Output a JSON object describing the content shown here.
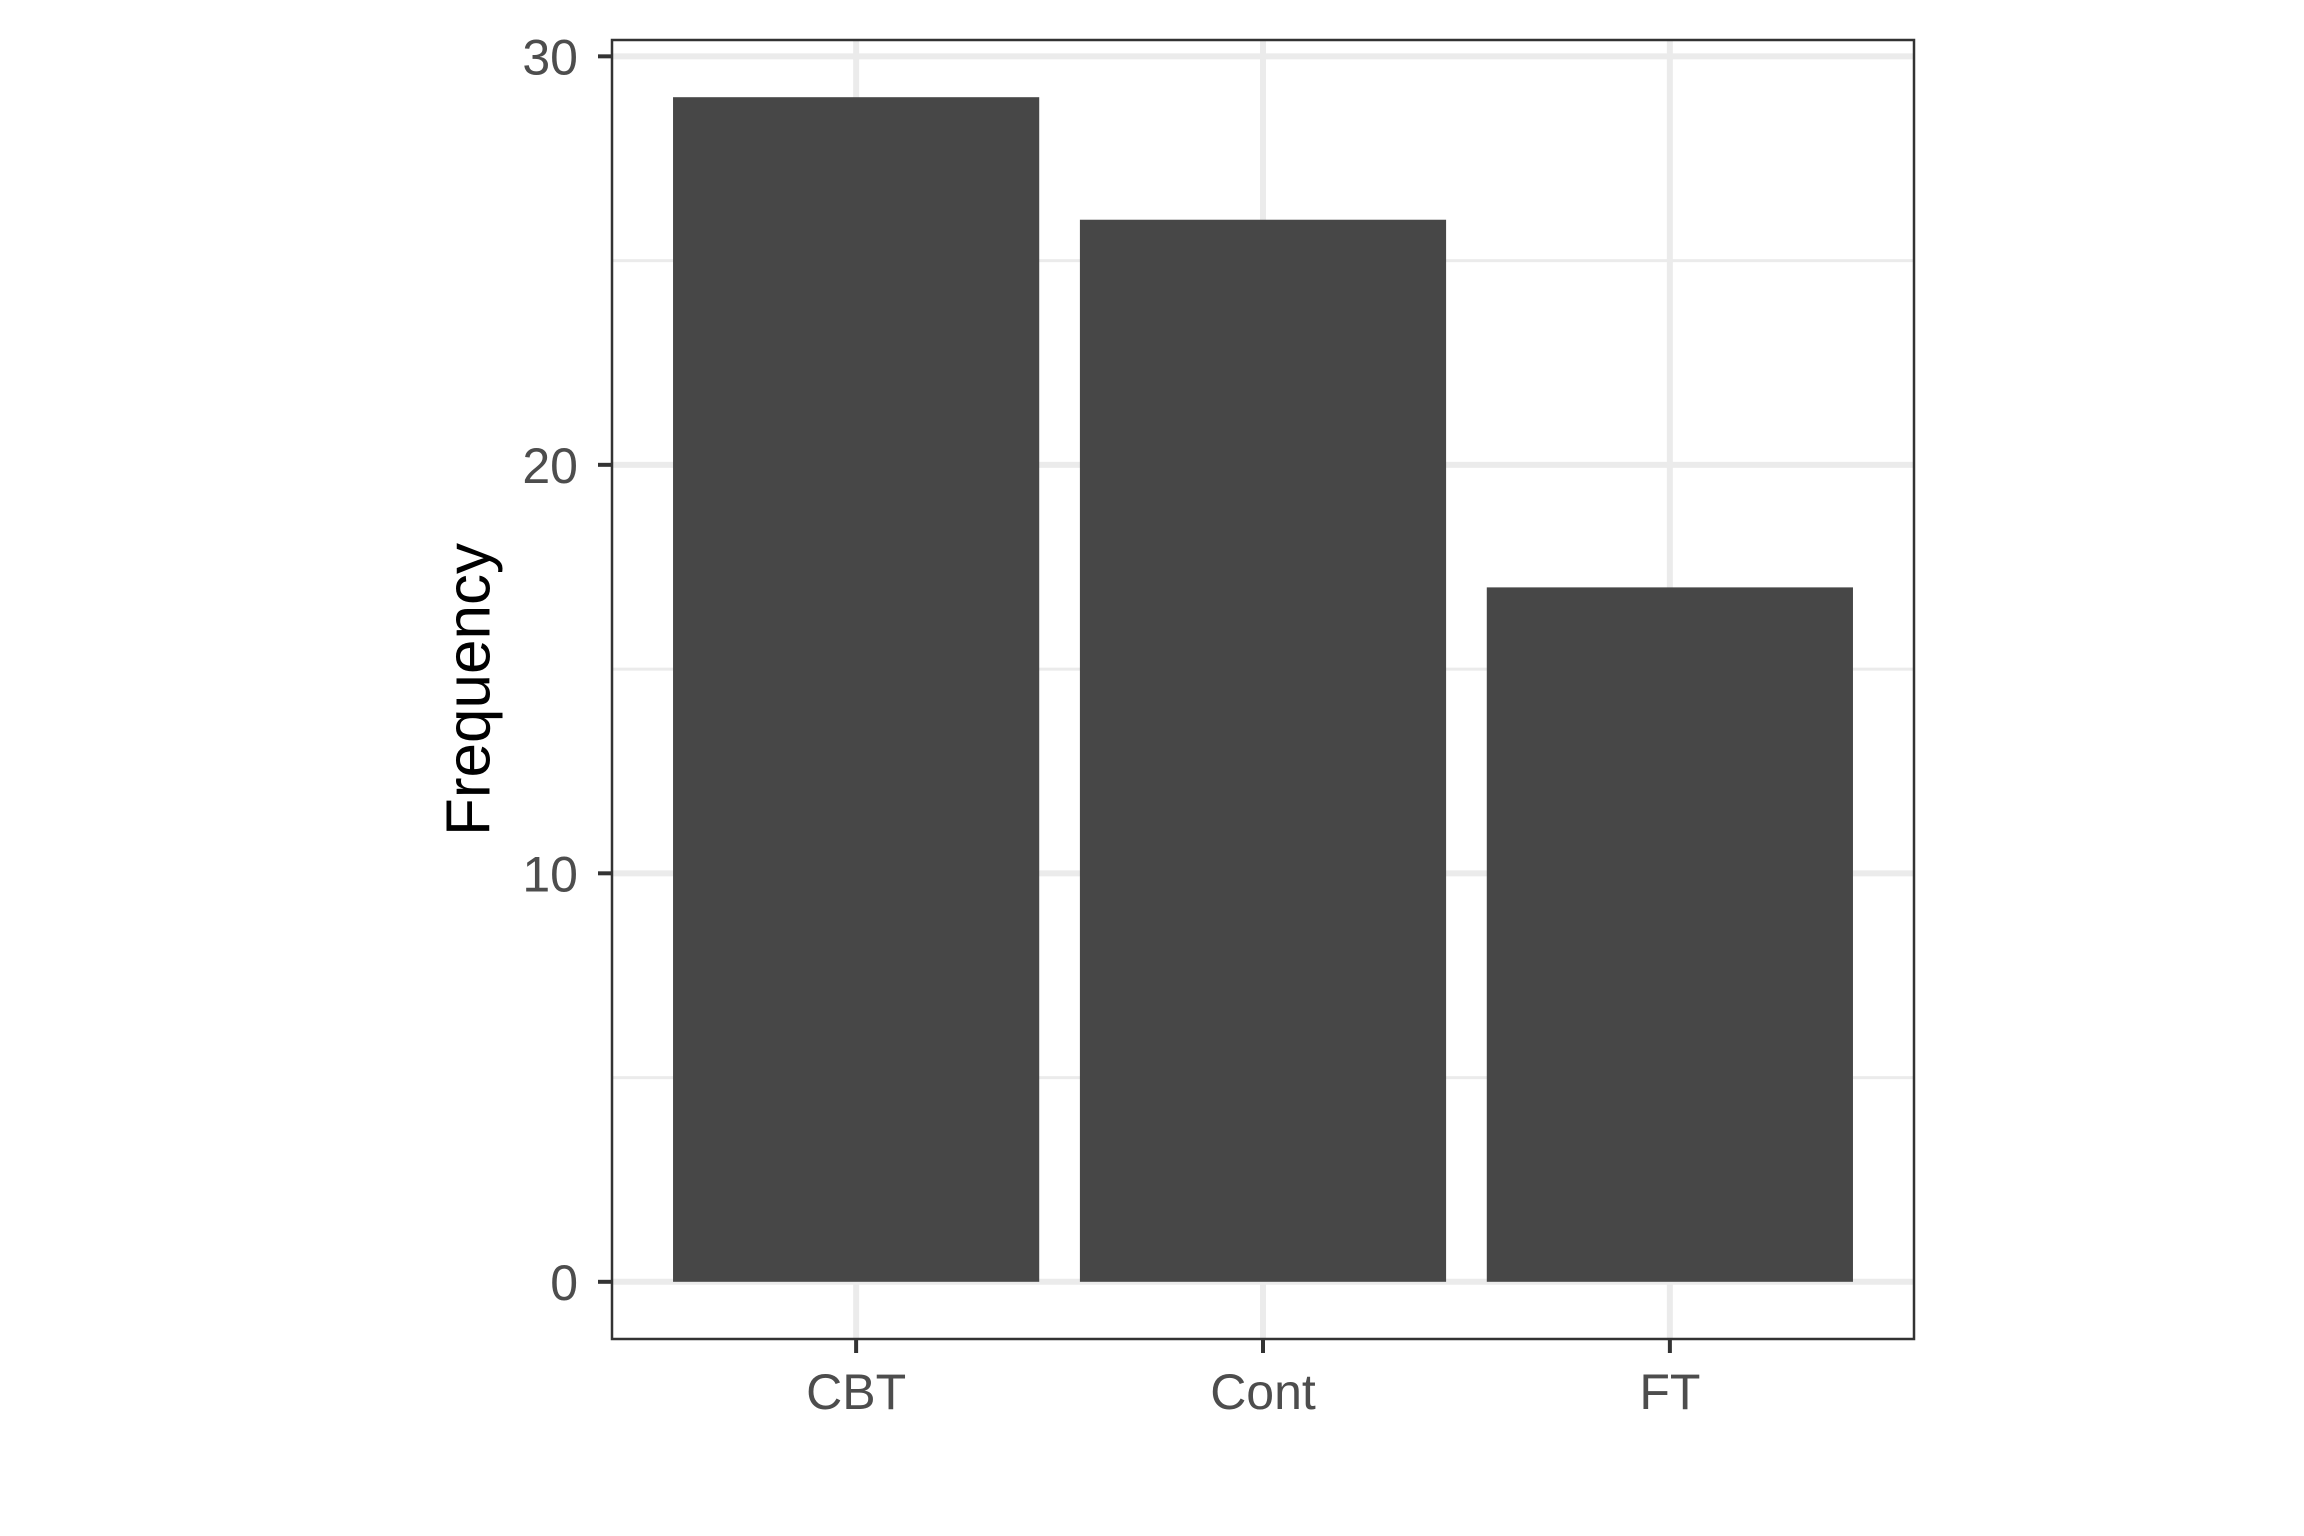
{
  "chart_data": {
    "type": "bar",
    "title": "",
    "xlabel": "",
    "ylabel": "Frequency",
    "categories": [
      "CBT",
      "Cont",
      "FT"
    ],
    "values": [
      29,
      26,
      17
    ],
    "ylim": [
      -1.4,
      30.4
    ],
    "yticks": [
      0,
      10,
      20,
      30
    ],
    "y_minor_ticks": [
      5,
      15,
      25
    ],
    "grid": true,
    "legend": "none",
    "colors": {
      "bar": "#474747",
      "grid": "#ebebeb",
      "panel_border": "#333333",
      "tick_mark": "#333333",
      "tick_label": "#4d4d4d",
      "axis_title": "#000000"
    }
  }
}
